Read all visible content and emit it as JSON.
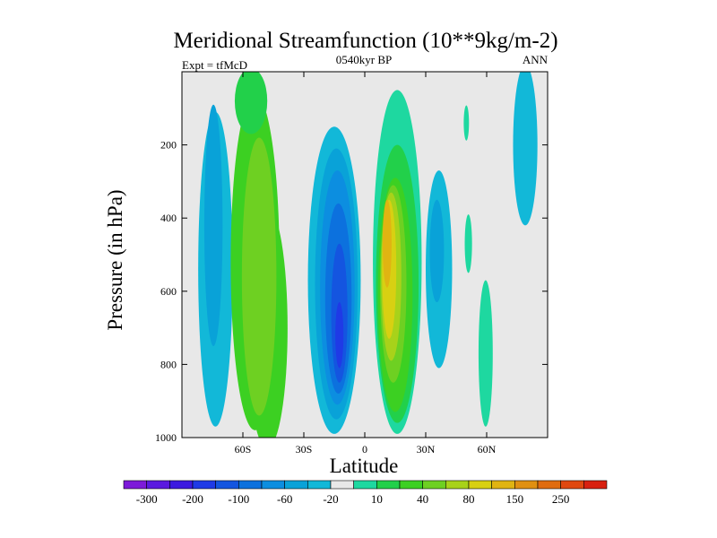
{
  "chart_data": {
    "type": "heatmap",
    "title": "Meridional Streamfunction (10**9kg/m-2)",
    "subtitle_left": "Expt = tfMcD",
    "subtitle_center": "0540kyr BP",
    "subtitle_right": "ANN",
    "xlabel": "Latitude",
    "ylabel": "Pressure (in hPa)",
    "xlim": [
      -90,
      90
    ],
    "ylim": [
      1000,
      0
    ],
    "x_ticks": [
      {
        "value": -60,
        "label": "60S"
      },
      {
        "value": -30,
        "label": "30S"
      },
      {
        "value": 0,
        "label": "0"
      },
      {
        "value": 30,
        "label": "30N"
      },
      {
        "value": 60,
        "label": "60N"
      }
    ],
    "y_ticks": [
      {
        "value": 200,
        "label": "200"
      },
      {
        "value": 400,
        "label": "400"
      },
      {
        "value": 600,
        "label": "600"
      },
      {
        "value": 800,
        "label": "800"
      },
      {
        "value": 1000,
        "label": "1000"
      }
    ],
    "background_color": "#e8e8e8",
    "colorbar": {
      "labels": [
        "-300",
        "-200",
        "-100",
        "-60",
        "-20",
        "10",
        "40",
        "80",
        "150",
        "250"
      ],
      "colors": [
        "#7d1ad9",
        "#5a1ae0",
        "#3c1ae0",
        "#1f3ae6",
        "#1455e0",
        "#0c71de",
        "#0c8ee0",
        "#09a2d8",
        "#12b8d8",
        "#e8e8e8",
        "#1ed8a0",
        "#22d04a",
        "#3cd022",
        "#6ed022",
        "#a8d21a",
        "#d8d012",
        "#e0b412",
        "#e09012",
        "#e06c10",
        "#e04810",
        "#d82010"
      ]
    },
    "features": [
      {
        "name": "Southern polar cell",
        "sign": "negative",
        "lat_range": [
          -80,
          -63
        ],
        "pressure_top": 10,
        "pressure_bottom": 970,
        "core_value": -20
      },
      {
        "name": "Southern Ferrel cell",
        "sign": "positive",
        "lat_range": [
          -63,
          -34
        ],
        "pressure_top": 10,
        "pressure_bottom": 970,
        "core_value": 40
      },
      {
        "name": "Southern Hadley cell",
        "sign": "negative",
        "lat_range": [
          -28,
          -2
        ],
        "pressure_top": 150,
        "pressure_bottom": 980,
        "core_value": -100
      },
      {
        "name": "Northern Hadley cell",
        "sign": "positive",
        "lat_range": [
          4,
          28
        ],
        "pressure_top": 10,
        "pressure_bottom": 980,
        "core_value": 150
      },
      {
        "name": "Northern Ferrel cell",
        "sign": "negative",
        "lat_range": [
          28,
          45
        ],
        "pressure_top": 270,
        "pressure_bottom": 810,
        "core_value": -60
      },
      {
        "name": "Northern polar cell",
        "sign": "positive",
        "lat_range": [
          55,
          64
        ],
        "pressure_top": 520,
        "pressure_bottom": 970,
        "core_value": 10
      },
      {
        "name": "Arctic negative cell",
        "sign": "negative",
        "lat_range": [
          73,
          85
        ],
        "pressure_top": 10,
        "pressure_bottom": 410,
        "core_value": -20
      }
    ]
  }
}
